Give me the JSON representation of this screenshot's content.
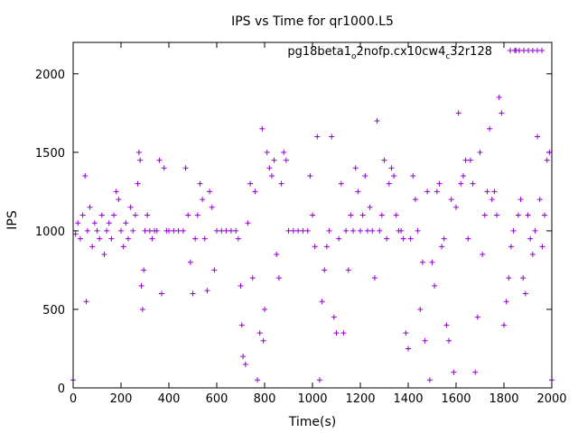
{
  "chart_data": {
    "type": "scatter",
    "title": "IPS vs Time for qr1000.L5",
    "xlabel": "Time(s)",
    "ylabel": "IPS",
    "xlim": [
      0,
      2000
    ],
    "ylim": [
      0,
      2200
    ],
    "xticks": [
      "0",
      "200",
      "400",
      "600",
      "800",
      "1000",
      "1200",
      "1400",
      "1600",
      "1800",
      "2000"
    ],
    "yticks": [
      "0",
      "500",
      "1000",
      "1500",
      "2000"
    ],
    "grid": false,
    "legend_position": "top-right",
    "marker": "plus",
    "color": "#9400d3",
    "series": [
      {
        "name_parts": [
          "pg18beta1",
          "o",
          "2nofp.cx10cw4",
          "c",
          "32r128"
        ],
        "points": [
          [
            0,
            50
          ],
          [
            10,
            980
          ],
          [
            20,
            1050
          ],
          [
            30,
            950
          ],
          [
            40,
            1100
          ],
          [
            50,
            1350
          ],
          [
            55,
            550
          ],
          [
            60,
            1000
          ],
          [
            70,
            1150
          ],
          [
            80,
            900
          ],
          [
            90,
            1050
          ],
          [
            100,
            1000
          ],
          [
            110,
            950
          ],
          [
            120,
            1100
          ],
          [
            130,
            850
          ],
          [
            140,
            1000
          ],
          [
            150,
            1050
          ],
          [
            160,
            950
          ],
          [
            170,
            1100
          ],
          [
            180,
            1250
          ],
          [
            190,
            1200
          ],
          [
            200,
            1000
          ],
          [
            210,
            900
          ],
          [
            220,
            1050
          ],
          [
            230,
            950
          ],
          [
            240,
            1150
          ],
          [
            250,
            1000
          ],
          [
            260,
            1100
          ],
          [
            270,
            1300
          ],
          [
            275,
            1500
          ],
          [
            280,
            1450
          ],
          [
            285,
            650
          ],
          [
            290,
            500
          ],
          [
            295,
            750
          ],
          [
            300,
            1000
          ],
          [
            310,
            1100
          ],
          [
            320,
            1000
          ],
          [
            330,
            950
          ],
          [
            340,
            1000
          ],
          [
            350,
            1000
          ],
          [
            360,
            1450
          ],
          [
            370,
            600
          ],
          [
            380,
            1400
          ],
          [
            390,
            1000
          ],
          [
            400,
            1000
          ],
          [
            420,
            1000
          ],
          [
            440,
            1000
          ],
          [
            460,
            1000
          ],
          [
            470,
            1400
          ],
          [
            480,
            1100
          ],
          [
            490,
            800
          ],
          [
            500,
            600
          ],
          [
            510,
            950
          ],
          [
            520,
            1100
          ],
          [
            530,
            1300
          ],
          [
            540,
            1200
          ],
          [
            550,
            950
          ],
          [
            560,
            620
          ],
          [
            570,
            1250
          ],
          [
            580,
            1150
          ],
          [
            590,
            750
          ],
          [
            600,
            1000
          ],
          [
            620,
            1000
          ],
          [
            640,
            1000
          ],
          [
            660,
            1000
          ],
          [
            680,
            1000
          ],
          [
            690,
            950
          ],
          [
            700,
            650
          ],
          [
            705,
            400
          ],
          [
            710,
            200
          ],
          [
            720,
            150
          ],
          [
            730,
            1050
          ],
          [
            740,
            1300
          ],
          [
            750,
            700
          ],
          [
            760,
            1250
          ],
          [
            770,
            50
          ],
          [
            780,
            350
          ],
          [
            790,
            1650
          ],
          [
            795,
            300
          ],
          [
            800,
            500
          ],
          [
            810,
            1500
          ],
          [
            820,
            1400
          ],
          [
            830,
            1350
          ],
          [
            840,
            1450
          ],
          [
            850,
            850
          ],
          [
            860,
            700
          ],
          [
            870,
            1300
          ],
          [
            880,
            1500
          ],
          [
            890,
            1450
          ],
          [
            900,
            1000
          ],
          [
            920,
            1000
          ],
          [
            940,
            1000
          ],
          [
            960,
            1000
          ],
          [
            980,
            1000
          ],
          [
            990,
            1350
          ],
          [
            1000,
            1100
          ],
          [
            1010,
            900
          ],
          [
            1020,
            1600
          ],
          [
            1030,
            50
          ],
          [
            1040,
            550
          ],
          [
            1050,
            750
          ],
          [
            1060,
            900
          ],
          [
            1070,
            1000
          ],
          [
            1080,
            1600
          ],
          [
            1090,
            450
          ],
          [
            1100,
            350
          ],
          [
            1110,
            950
          ],
          [
            1120,
            1300
          ],
          [
            1130,
            350
          ],
          [
            1140,
            1000
          ],
          [
            1150,
            750
          ],
          [
            1160,
            1100
          ],
          [
            1170,
            1000
          ],
          [
            1180,
            1400
          ],
          [
            1190,
            1250
          ],
          [
            1200,
            1000
          ],
          [
            1210,
            1100
          ],
          [
            1220,
            1350
          ],
          [
            1230,
            1000
          ],
          [
            1240,
            1150
          ],
          [
            1250,
            1000
          ],
          [
            1260,
            700
          ],
          [
            1270,
            1700
          ],
          [
            1280,
            1000
          ],
          [
            1290,
            1100
          ],
          [
            1300,
            1450
          ],
          [
            1310,
            950
          ],
          [
            1320,
            1300
          ],
          [
            1330,
            1400
          ],
          [
            1340,
            1350
          ],
          [
            1350,
            1100
          ],
          [
            1360,
            1000
          ],
          [
            1370,
            1000
          ],
          [
            1380,
            950
          ],
          [
            1390,
            350
          ],
          [
            1400,
            250
          ],
          [
            1410,
            950
          ],
          [
            1420,
            1350
          ],
          [
            1430,
            1200
          ],
          [
            1440,
            1000
          ],
          [
            1450,
            500
          ],
          [
            1460,
            800
          ],
          [
            1470,
            300
          ],
          [
            1480,
            1250
          ],
          [
            1490,
            50
          ],
          [
            1500,
            800
          ],
          [
            1510,
            650
          ],
          [
            1520,
            1250
          ],
          [
            1530,
            1300
          ],
          [
            1540,
            900
          ],
          [
            1550,
            950
          ],
          [
            1560,
            400
          ],
          [
            1570,
            300
          ],
          [
            1580,
            1200
          ],
          [
            1590,
            100
          ],
          [
            1600,
            1150
          ],
          [
            1610,
            1750
          ],
          [
            1620,
            1300
          ],
          [
            1630,
            1350
          ],
          [
            1640,
            1450
          ],
          [
            1650,
            950
          ],
          [
            1660,
            1450
          ],
          [
            1670,
            1300
          ],
          [
            1680,
            100
          ],
          [
            1690,
            450
          ],
          [
            1700,
            1500
          ],
          [
            1710,
            850
          ],
          [
            1720,
            1100
          ],
          [
            1730,
            1250
          ],
          [
            1740,
            1650
          ],
          [
            1750,
            1200
          ],
          [
            1760,
            1250
          ],
          [
            1770,
            1100
          ],
          [
            1780,
            1850
          ],
          [
            1790,
            1750
          ],
          [
            1800,
            400
          ],
          [
            1810,
            550
          ],
          [
            1820,
            700
          ],
          [
            1830,
            900
          ],
          [
            1840,
            1000
          ],
          [
            1850,
            2150
          ],
          [
            1860,
            1100
          ],
          [
            1870,
            1200
          ],
          [
            1880,
            700
          ],
          [
            1890,
            600
          ],
          [
            1900,
            1100
          ],
          [
            1910,
            950
          ],
          [
            1920,
            850
          ],
          [
            1930,
            1000
          ],
          [
            1940,
            1600
          ],
          [
            1950,
            1200
          ],
          [
            1960,
            900
          ],
          [
            1970,
            1100
          ],
          [
            1980,
            1450
          ],
          [
            1990,
            1500
          ],
          [
            2000,
            50
          ]
        ]
      }
    ]
  }
}
